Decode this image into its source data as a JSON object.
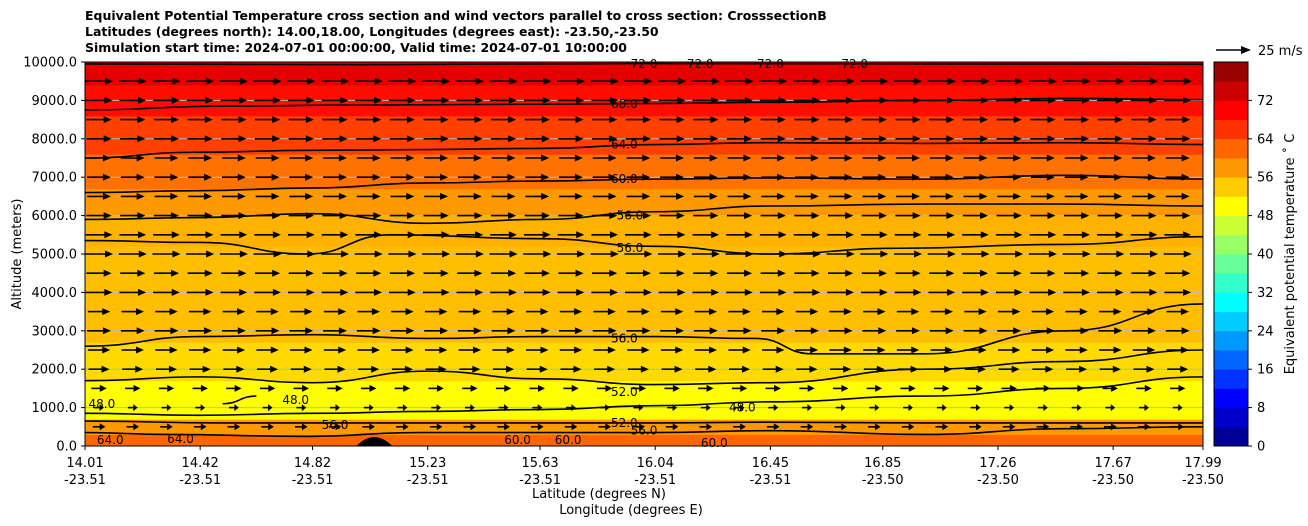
{
  "chart_data": {
    "type": "heatmap",
    "title_lines": [
      "Equivalent Potential Temperature cross section and wind vectors parallel to cross section: CrosssectionB",
      "Latitudes (degrees north): 14.00,18.00, Longitudes (degrees east): -23.50,-23.50",
      "Simulation start time: 2024-07-01 00:00:00, Valid time: 2024-07-01 10:00:00"
    ],
    "ylabel": "Altitude (meters)",
    "xlabel_lat": "Latitude (degrees N)",
    "xlabel_lon": "Longitude (degrees E)",
    "ylim": [
      0,
      10000
    ],
    "y_ticks": [
      {
        "value": 0,
        "label": "0.0"
      },
      {
        "value": 1000,
        "label": "1000.0"
      },
      {
        "value": 2000,
        "label": "2000.0"
      },
      {
        "value": 3000,
        "label": "3000.0"
      },
      {
        "value": 4000,
        "label": "4000.0"
      },
      {
        "value": 5000,
        "label": "5000.0"
      },
      {
        "value": 6000,
        "label": "6000.0"
      },
      {
        "value": 7000,
        "label": "7000.0"
      },
      {
        "value": 8000,
        "label": "8000.0"
      },
      {
        "value": 9000,
        "label": "9000.0"
      },
      {
        "value": 10000,
        "label": "10000.0"
      }
    ],
    "xlim": [
      14.01,
      17.99
    ],
    "x_ticks": [
      {
        "value": 14.01,
        "lat": "14.01",
        "lon": "-23.51"
      },
      {
        "value": 14.42,
        "lat": "14.42",
        "lon": "-23.51"
      },
      {
        "value": 14.82,
        "lat": "14.82",
        "lon": "-23.51"
      },
      {
        "value": 15.23,
        "lat": "15.23",
        "lon": "-23.51"
      },
      {
        "value": 15.63,
        "lat": "15.63",
        "lon": "-23.51"
      },
      {
        "value": 16.04,
        "lat": "16.04",
        "lon": "-23.51"
      },
      {
        "value": 16.45,
        "lat": "16.45",
        "lon": "-23.51"
      },
      {
        "value": 16.85,
        "lat": "16.85",
        "lon": "-23.50"
      },
      {
        "value": 17.26,
        "lat": "17.26",
        "lon": "-23.50"
      },
      {
        "value": 17.67,
        "lat": "17.67",
        "lon": "-23.50"
      },
      {
        "value": 17.99,
        "lat": "17.99",
        "lon": "-23.50"
      }
    ],
    "field_bands": [
      {
        "from": 0,
        "to": 300,
        "theta": 62
      },
      {
        "from": 300,
        "to": 700,
        "theta": 58
      },
      {
        "from": 700,
        "to": 1700,
        "theta": 50
      },
      {
        "from": 1700,
        "to": 2700,
        "theta": 53
      },
      {
        "from": 2700,
        "to": 5200,
        "theta": 55
      },
      {
        "from": 5200,
        "to": 6000,
        "theta": 56
      },
      {
        "from": 6000,
        "to": 6700,
        "theta": 58
      },
      {
        "from": 6700,
        "to": 7600,
        "theta": 61
      },
      {
        "from": 7600,
        "to": 8600,
        "theta": 65
      },
      {
        "from": 8600,
        "to": 9400,
        "theta": 69
      },
      {
        "from": 9400,
        "to": 10000,
        "theta": 72
      }
    ],
    "contours": [
      {
        "level": 72.0,
        "points": [
          [
            14.01,
            9950
          ],
          [
            15.0,
            9930
          ],
          [
            16.0,
            9960
          ],
          [
            17.0,
            9950
          ],
          [
            17.99,
            9940
          ]
        ]
      },
      {
        "level": 68.0,
        "points": [
          [
            14.01,
            8750
          ],
          [
            14.5,
            8850
          ],
          [
            15.0,
            8880
          ],
          [
            15.63,
            8900
          ],
          [
            16.04,
            8920
          ],
          [
            16.45,
            8950
          ],
          [
            17.0,
            9000
          ],
          [
            17.5,
            9050
          ],
          [
            17.99,
            9020
          ]
        ]
      },
      {
        "level": 64.0,
        "points": [
          [
            14.01,
            7500
          ],
          [
            14.4,
            7650
          ],
          [
            14.82,
            7700
          ],
          [
            15.23,
            7720
          ],
          [
            15.63,
            7750
          ],
          [
            16.04,
            7850
          ],
          [
            16.45,
            7900
          ],
          [
            17.0,
            7880
          ],
          [
            17.5,
            7900
          ],
          [
            17.99,
            7850
          ]
        ]
      },
      {
        "level": 60.0,
        "points": [
          [
            14.01,
            6600
          ],
          [
            14.42,
            6650
          ],
          [
            14.82,
            6720
          ],
          [
            15.23,
            6850
          ],
          [
            15.63,
            6900
          ],
          [
            16.04,
            6950
          ],
          [
            16.45,
            6980
          ],
          [
            17.0,
            6950
          ],
          [
            17.5,
            7050
          ],
          [
            17.99,
            6950
          ]
        ]
      },
      {
        "level": 56.0,
        "points": [
          [
            14.01,
            5900
          ],
          [
            14.42,
            5950
          ],
          [
            14.82,
            6050
          ],
          [
            15.23,
            5800
          ],
          [
            15.63,
            5900
          ],
          [
            16.04,
            6100
          ],
          [
            16.45,
            6250
          ],
          [
            17.0,
            6300
          ],
          [
            17.5,
            6300
          ],
          [
            17.99,
            6250
          ]
        ]
      },
      {
        "level": 56.0,
        "points": [
          [
            14.01,
            5350
          ],
          [
            14.42,
            5300
          ],
          [
            14.8,
            5000
          ],
          [
            15.1,
            5500
          ],
          [
            15.63,
            5400
          ],
          [
            16.04,
            5200
          ],
          [
            16.45,
            5000
          ],
          [
            16.9,
            5150
          ],
          [
            17.5,
            5250
          ],
          [
            17.99,
            5450
          ]
        ]
      },
      {
        "level": 56.0,
        "points": [
          [
            14.01,
            2600
          ],
          [
            14.42,
            2850
          ],
          [
            14.82,
            2900
          ],
          [
            15.23,
            2800
          ],
          [
            15.63,
            2850
          ],
          [
            16.04,
            2850
          ],
          [
            16.4,
            2800
          ],
          [
            16.6,
            2400
          ],
          [
            17.0,
            2400
          ],
          [
            17.5,
            3000
          ],
          [
            17.99,
            3700
          ]
        ]
      },
      {
        "level": 52.0,
        "points": [
          [
            14.01,
            1700
          ],
          [
            14.42,
            1800
          ],
          [
            14.82,
            1650
          ],
          [
            15.23,
            1950
          ],
          [
            15.63,
            1750
          ],
          [
            16.04,
            1600
          ],
          [
            16.45,
            1650
          ],
          [
            17.0,
            2000
          ],
          [
            17.5,
            2200
          ],
          [
            17.99,
            2500
          ]
        ]
      },
      {
        "level": 52.0,
        "points": [
          [
            14.01,
            850
          ],
          [
            14.42,
            800
          ],
          [
            14.82,
            850
          ],
          [
            15.23,
            900
          ],
          [
            15.63,
            950
          ],
          [
            16.04,
            1050
          ],
          [
            16.45,
            1150
          ],
          [
            17.0,
            1300
          ],
          [
            17.5,
            1500
          ],
          [
            17.99,
            1800
          ]
        ]
      },
      {
        "level": 48.0,
        "points": [
          [
            14.5,
            1100
          ],
          [
            14.62,
            1300
          ]
        ]
      },
      {
        "level": 52.0,
        "points": [
          [
            14.01,
            650
          ],
          [
            14.5,
            600
          ],
          [
            15.0,
            600
          ],
          [
            15.63,
            600
          ],
          [
            16.04,
            600
          ],
          [
            16.45,
            620
          ],
          [
            17.0,
            600
          ],
          [
            17.5,
            600
          ],
          [
            17.99,
            600
          ]
        ]
      },
      {
        "level": 56.0,
        "points": [
          [
            14.01,
            350
          ],
          [
            14.3,
            300
          ],
          [
            14.8,
            250
          ],
          [
            15.2,
            350
          ],
          [
            15.63,
            350
          ],
          [
            16.04,
            350
          ],
          [
            16.45,
            400
          ],
          [
            17.0,
            300
          ],
          [
            17.5,
            450
          ],
          [
            17.99,
            500
          ]
        ]
      }
    ],
    "contour_labels": [
      {
        "text": "72.0",
        "x": 16.0,
        "y": 9950
      },
      {
        "text": "72.0",
        "x": 16.2,
        "y": 9950
      },
      {
        "text": "72.0",
        "x": 16.45,
        "y": 9950
      },
      {
        "text": "72.0",
        "x": 16.75,
        "y": 9950
      },
      {
        "text": "68.0",
        "x": 15.93,
        "y": 8900
      },
      {
        "text": "64.0",
        "x": 15.93,
        "y": 7850
      },
      {
        "text": "60.0",
        "x": 15.93,
        "y": 6950
      },
      {
        "text": "56.0",
        "x": 15.95,
        "y": 6000
      },
      {
        "text": "56.0",
        "x": 15.95,
        "y": 5150
      },
      {
        "text": "56.0",
        "x": 15.93,
        "y": 2800
      },
      {
        "text": "52.0",
        "x": 15.93,
        "y": 1400
      },
      {
        "text": "48.0",
        "x": 14.07,
        "y": 1100
      },
      {
        "text": "48.0",
        "x": 14.76,
        "y": 1200
      },
      {
        "text": "48.0",
        "x": 16.35,
        "y": 1000
      },
      {
        "text": "52.0",
        "x": 15.93,
        "y": 600
      },
      {
        "text": "56.0",
        "x": 16.0,
        "y": 400
      },
      {
        "text": "56.0",
        "x": 14.9,
        "y": 550
      },
      {
        "text": "64.0",
        "x": 14.1,
        "y": 150
      },
      {
        "text": "64.0",
        "x": 14.35,
        "y": 180
      },
      {
        "text": "60.0",
        "x": 15.55,
        "y": 150
      },
      {
        "text": "60.0",
        "x": 15.73,
        "y": 150
      },
      {
        "text": "60.0",
        "x": 16.25,
        "y": 80
      }
    ],
    "wind_vectors": {
      "reference_label": "25 m/s",
      "reference_speed": 25,
      "x_spacing": 0.12,
      "levels": [
        9500,
        9000,
        8500,
        8000,
        7500,
        7000,
        6500,
        6000,
        5500,
        5000,
        4500,
        4000,
        3500,
        3000,
        2500,
        2000,
        1500,
        1000,
        500
      ],
      "speeds": [
        20,
        19,
        18,
        18,
        17,
        17,
        17,
        18,
        19,
        20,
        18,
        19,
        16,
        17,
        16,
        15,
        11,
        7,
        9
      ]
    },
    "colorbar": {
      "label": "Equivalent potential temperature $^\\circ$ C",
      "label_display": "Equivalent potential temperature ˚ C",
      "min": 0,
      "max": 80,
      "ticks": [
        0,
        8,
        16,
        24,
        32,
        40,
        48,
        56,
        64,
        72
      ]
    },
    "colors": {
      "jet": [
        "#00007f",
        "#0000ff",
        "#007fff",
        "#00ffff",
        "#7fff7f",
        "#ffff00",
        "#ff7f00",
        "#ff0000",
        "#7f0000"
      ],
      "ground": "#000000",
      "grid": "#b8b8b8"
    }
  }
}
